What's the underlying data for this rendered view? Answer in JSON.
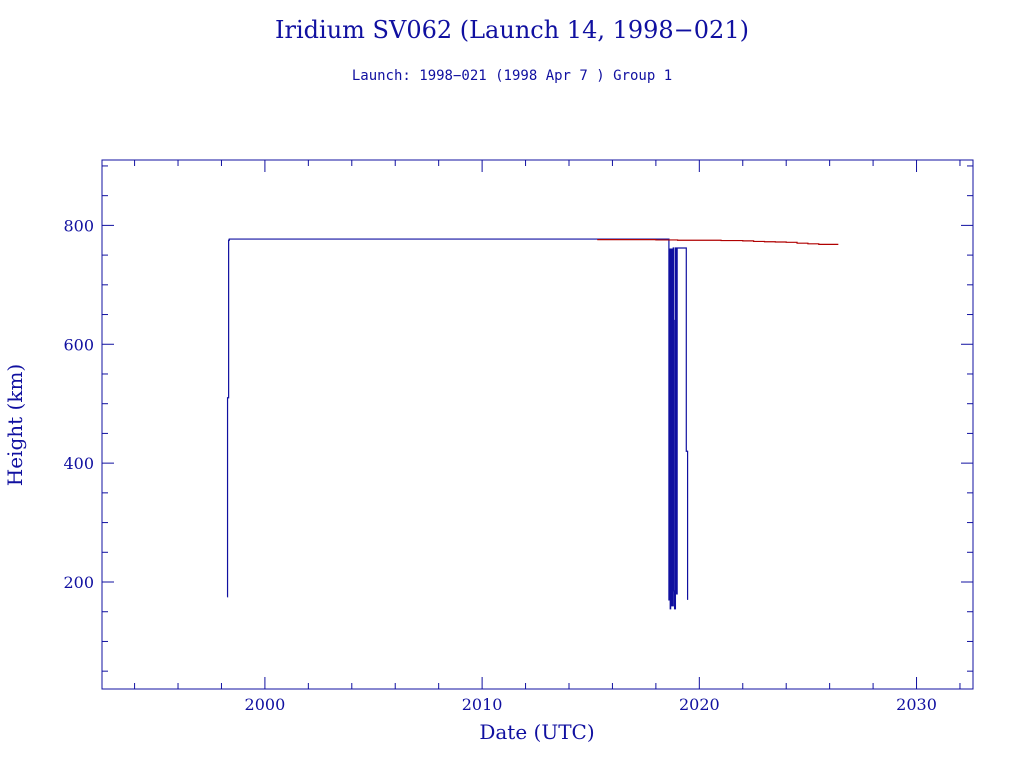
{
  "chart_data": {
    "type": "line",
    "title": "Iridium SV062 (Launch 14, 1998−021)",
    "subtitle": "Launch: 1998−021  (1998 Apr  7 )  Group 1",
    "xlabel": "Date (UTC)",
    "ylabel": "Height (km)",
    "xlim": [
      1992.5,
      2032.6
    ],
    "ylim": [
      20,
      910
    ],
    "x_ticks": [
      2000,
      2010,
      2020,
      2030
    ],
    "x_tick_labels": [
      "2000",
      "2010",
      "2020",
      "2030"
    ],
    "y_ticks": [
      200,
      400,
      600,
      800
    ],
    "y_tick_labels": [
      "200",
      "400",
      "600",
      "800"
    ],
    "x_minor_step": 2,
    "y_minor_step": 50,
    "grid": false,
    "legend": "none",
    "colors": {
      "frame": "#1010a0",
      "text": "#1010a0",
      "series_blue": "#1010a0",
      "series_red": "#b00000"
    },
    "series": [
      {
        "color": "#1010a0",
        "x": [
          1998.27,
          1998.28,
          1998.3,
          1998.33,
          1998.36,
          2018.58,
          2018.6,
          2018.62,
          2018.64,
          2018.66,
          2018.68,
          2018.7,
          2018.72,
          2018.74,
          2018.76,
          2018.78,
          2018.8,
          2018.82,
          2018.84,
          2018.86,
          2018.9,
          2018.94,
          2018.98,
          2019.02,
          2019.1,
          2019.2,
          2019.3,
          2019.38,
          2019.4,
          2019.44,
          2019.46
        ],
        "y": [
          175,
          510,
          510,
          775,
          777,
          777,
          170,
          760,
          410,
          155,
          760,
          340,
          160,
          760,
          370,
          160,
          762,
          640,
          185,
          155,
          762,
          180,
          762,
          762,
          762,
          762,
          762,
          762,
          420,
          420,
          170
        ]
      },
      {
        "color": "#b00000",
        "x": [
          2015.3,
          2016.0,
          2017.0,
          2018.0,
          2019.0,
          2020.0,
          2021.0,
          2022.0,
          2022.5,
          2023.0,
          2023.5,
          2024.0,
          2024.5,
          2025.0,
          2025.5,
          2026.0,
          2026.4
        ],
        "y": [
          776,
          776,
          776,
          775.5,
          775,
          775,
          774.5,
          774,
          773,
          772.5,
          772,
          771.5,
          770,
          769,
          768,
          768,
          768
        ]
      }
    ]
  }
}
